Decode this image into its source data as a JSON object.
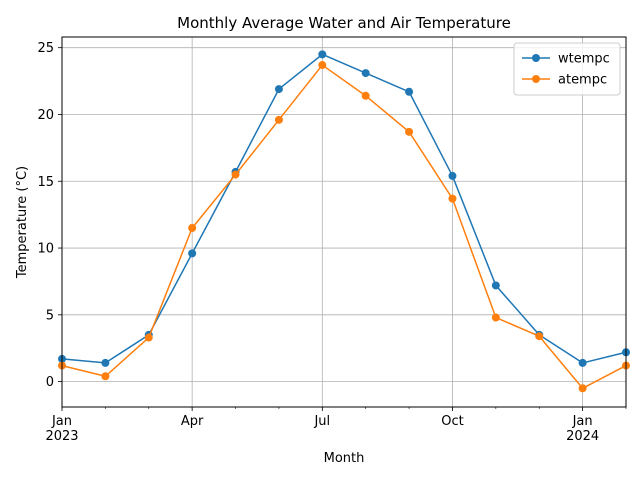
{
  "chart_data": {
    "type": "line",
    "title": "Monthly Average Water and Air Temperature",
    "xlabel": "Month",
    "ylabel": "Temperature (°C)",
    "x": [
      "2023-01",
      "2023-02",
      "2023-03",
      "2023-04",
      "2023-05",
      "2023-06",
      "2023-07",
      "2023-08",
      "2023-09",
      "2023-10",
      "2023-11",
      "2023-12",
      "2024-01",
      "2024-02"
    ],
    "xlim": [
      "2023-01",
      "2024-02"
    ],
    "ylim": [
      -1.9,
      25.8
    ],
    "yticks": [
      0,
      5,
      10,
      15,
      20,
      25
    ],
    "xticks_major": [
      {
        "x": "2023-01",
        "label": "Jan",
        "sublabel": "2023"
      },
      {
        "x": "2023-04",
        "label": "Apr",
        "sublabel": ""
      },
      {
        "x": "2023-07",
        "label": "Jul",
        "sublabel": ""
      },
      {
        "x": "2023-10",
        "label": "Oct",
        "sublabel": ""
      },
      {
        "x": "2024-01",
        "label": "Jan",
        "sublabel": "2024"
      }
    ],
    "grid": true,
    "legend_position": "top-right",
    "series": [
      {
        "name": "wtempc",
        "color": "#1f77b4",
        "values": [
          1.7,
          1.4,
          3.5,
          9.6,
          15.7,
          21.9,
          24.5,
          23.1,
          21.7,
          15.4,
          7.2,
          3.5,
          1.4,
          2.2
        ]
      },
      {
        "name": "atempc",
        "color": "#ff7f0e",
        "values": [
          1.2,
          0.4,
          3.3,
          11.5,
          15.5,
          19.6,
          23.7,
          21.4,
          18.7,
          13.7,
          4.8,
          3.4,
          -0.5,
          1.2
        ]
      }
    ]
  }
}
